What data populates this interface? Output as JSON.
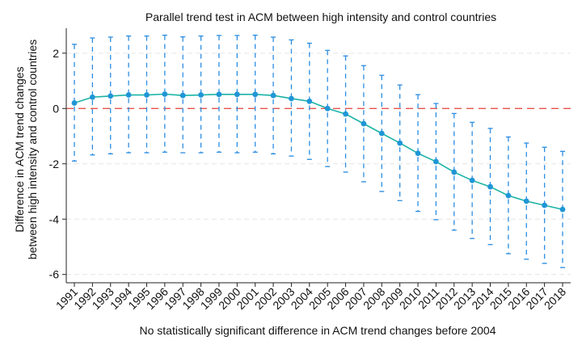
{
  "chart_data": {
    "type": "line",
    "title": "Parallel trend test in ACM between high intensity and control countries",
    "xlabel": "No statistically significant difference in ACM trend changes before 2004",
    "ylabel_lines": [
      "Difference in ACM trend changes",
      "between high intensity and control countries"
    ],
    "ylim": [
      -6.3,
      2.9
    ],
    "yticks": [
      -6,
      -4,
      -2,
      0,
      2
    ],
    "reference_line_y": 0,
    "grid": true,
    "colors": {
      "point": "#1f96d6",
      "line": "#1ab3a6",
      "ci": "#2b8de0",
      "reference": "#e8534a"
    },
    "x": [
      1991,
      1992,
      1993,
      1994,
      1995,
      1996,
      1997,
      1998,
      1999,
      2000,
      2001,
      2002,
      2003,
      2004,
      2005,
      2006,
      2007,
      2008,
      2009,
      2010,
      2011,
      2012,
      2013,
      2014,
      2015,
      2016,
      2017,
      2018
    ],
    "x_labels": [
      "1991",
      "1992",
      "1993",
      "1994",
      "1995",
      "1996",
      "1997",
      "1998",
      "1999",
      "2000",
      "2001",
      "2002",
      "2003",
      "2004",
      "2005",
      "2006",
      "2007",
      "2008",
      "2009",
      "2010",
      "2011",
      "2012",
      "2013",
      "2014",
      "2015",
      "2016",
      "2017",
      "2018"
    ],
    "series": [
      {
        "values": [
          0.2,
          0.41,
          0.45,
          0.49,
          0.49,
          0.52,
          0.47,
          0.49,
          0.51,
          0.51,
          0.51,
          0.47,
          0.36,
          0.26,
          0.0,
          -0.2,
          -0.55,
          -0.9,
          -1.25,
          -1.62,
          -1.92,
          -2.3,
          -2.6,
          -2.83,
          -3.15,
          -3.35,
          -3.5,
          -3.65
        ],
        "ci_lower": [
          -1.9,
          -1.68,
          -1.64,
          -1.6,
          -1.6,
          -1.58,
          -1.6,
          -1.6,
          -1.58,
          -1.6,
          -1.58,
          -1.64,
          -1.72,
          -1.84,
          -2.1,
          -2.3,
          -2.65,
          -3.0,
          -3.33,
          -3.72,
          -4.02,
          -4.4,
          -4.7,
          -4.92,
          -5.25,
          -5.45,
          -5.6,
          -5.75
        ],
        "ci_upper": [
          2.32,
          2.55,
          2.58,
          2.62,
          2.62,
          2.65,
          2.59,
          2.62,
          2.64,
          2.64,
          2.65,
          2.58,
          2.48,
          2.36,
          2.1,
          1.9,
          1.55,
          1.2,
          0.85,
          0.5,
          0.18,
          -0.18,
          -0.5,
          -0.72,
          -1.03,
          -1.25,
          -1.4,
          -1.55
        ]
      }
    ]
  }
}
